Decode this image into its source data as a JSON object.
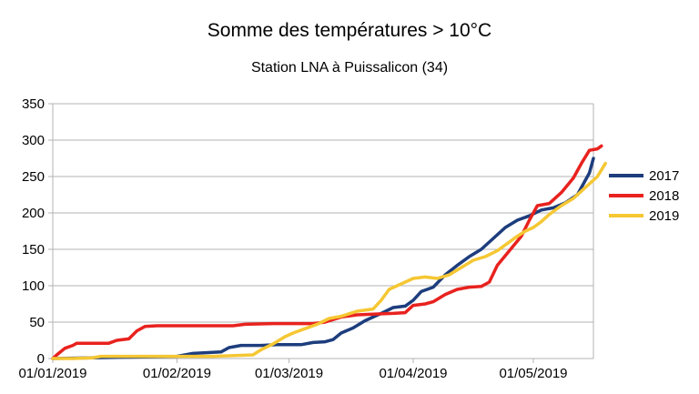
{
  "chart_data": {
    "type": "line",
    "title": "Somme des températures > 10°C",
    "subtitle": "Station LNA à Puissalicon (34)",
    "xlabel": "",
    "ylabel": "",
    "ylim": [
      0,
      350
    ],
    "yticks": [
      0,
      50,
      100,
      150,
      200,
      250,
      300,
      350
    ],
    "xlim": [
      0,
      135
    ],
    "xticks": [
      {
        "label": "01/01/2019",
        "day": 0
      },
      {
        "label": "01/02/2019",
        "day": 31
      },
      {
        "label": "01/03/2019",
        "day": 59
      },
      {
        "label": "01/04/2019",
        "day": 90
      },
      {
        "label": "01/05/2019",
        "day": 120
      }
    ],
    "grid": true,
    "legend_position": "right",
    "series": [
      {
        "name": "2017",
        "color": "#1d3d7d",
        "points": [
          [
            0,
            0
          ],
          [
            31,
            3
          ],
          [
            35,
            7
          ],
          [
            42,
            9
          ],
          [
            44,
            15
          ],
          [
            47,
            18
          ],
          [
            52,
            18
          ],
          [
            56,
            19
          ],
          [
            62,
            19
          ],
          [
            65,
            22
          ],
          [
            68,
            23
          ],
          [
            70,
            26
          ],
          [
            72,
            35
          ],
          [
            75,
            42
          ],
          [
            78,
            52
          ],
          [
            82,
            62
          ],
          [
            85,
            70
          ],
          [
            88,
            72
          ],
          [
            90,
            80
          ],
          [
            92,
            92
          ],
          [
            95,
            98
          ],
          [
            98,
            115
          ],
          [
            101,
            128
          ],
          [
            104,
            140
          ],
          [
            107,
            150
          ],
          [
            110,
            165
          ],
          [
            113,
            180
          ],
          [
            116,
            190
          ],
          [
            119,
            196
          ],
          [
            122,
            204
          ],
          [
            125,
            207
          ],
          [
            128,
            214
          ],
          [
            131,
            225
          ],
          [
            134,
            255
          ],
          [
            135,
            275
          ]
        ]
      },
      {
        "name": "2018",
        "color": "#e8221e",
        "points": [
          [
            0,
            0
          ],
          [
            1,
            5
          ],
          [
            3,
            14
          ],
          [
            5,
            18
          ],
          [
            6,
            21
          ],
          [
            10,
            21
          ],
          [
            14,
            21
          ],
          [
            16,
            25
          ],
          [
            19,
            27
          ],
          [
            21,
            38
          ],
          [
            23,
            44
          ],
          [
            26,
            45
          ],
          [
            35,
            45
          ],
          [
            45,
            45
          ],
          [
            48,
            47
          ],
          [
            55,
            48
          ],
          [
            65,
            48
          ],
          [
            68,
            50
          ],
          [
            72,
            57
          ],
          [
            76,
            60
          ],
          [
            80,
            61
          ],
          [
            85,
            62
          ],
          [
            88,
            63
          ],
          [
            90,
            73
          ],
          [
            93,
            75
          ],
          [
            95,
            78
          ],
          [
            98,
            88
          ],
          [
            101,
            95
          ],
          [
            104,
            98
          ],
          [
            107,
            99
          ],
          [
            109,
            105
          ],
          [
            111,
            128
          ],
          [
            114,
            148
          ],
          [
            117,
            168
          ],
          [
            119,
            190
          ],
          [
            121,
            210
          ],
          [
            124,
            213
          ],
          [
            127,
            228
          ],
          [
            130,
            248
          ],
          [
            132,
            268
          ],
          [
            134,
            286
          ],
          [
            136,
            288
          ],
          [
            137,
            292
          ]
        ]
      },
      {
        "name": "2019",
        "color": "#f5c733",
        "points": [
          [
            0,
            0
          ],
          [
            5,
            0
          ],
          [
            10,
            1
          ],
          [
            12,
            3
          ],
          [
            31,
            3
          ],
          [
            40,
            3
          ],
          [
            50,
            5
          ],
          [
            52,
            12
          ],
          [
            55,
            20
          ],
          [
            58,
            30
          ],
          [
            60,
            35
          ],
          [
            63,
            41
          ],
          [
            66,
            47
          ],
          [
            69,
            55
          ],
          [
            72,
            58
          ],
          [
            76,
            65
          ],
          [
            80,
            68
          ],
          [
            82,
            80
          ],
          [
            84,
            95
          ],
          [
            86,
            100
          ],
          [
            88,
            105
          ],
          [
            90,
            110
          ],
          [
            93,
            112
          ],
          [
            96,
            110
          ],
          [
            99,
            115
          ],
          [
            102,
            125
          ],
          [
            105,
            135
          ],
          [
            108,
            140
          ],
          [
            111,
            148
          ],
          [
            114,
            160
          ],
          [
            116,
            168
          ],
          [
            118,
            175
          ],
          [
            120,
            180
          ],
          [
            122,
            188
          ],
          [
            124,
            198
          ],
          [
            127,
            210
          ],
          [
            130,
            220
          ],
          [
            133,
            235
          ],
          [
            136,
            250
          ],
          [
            138,
            268
          ]
        ]
      }
    ]
  }
}
